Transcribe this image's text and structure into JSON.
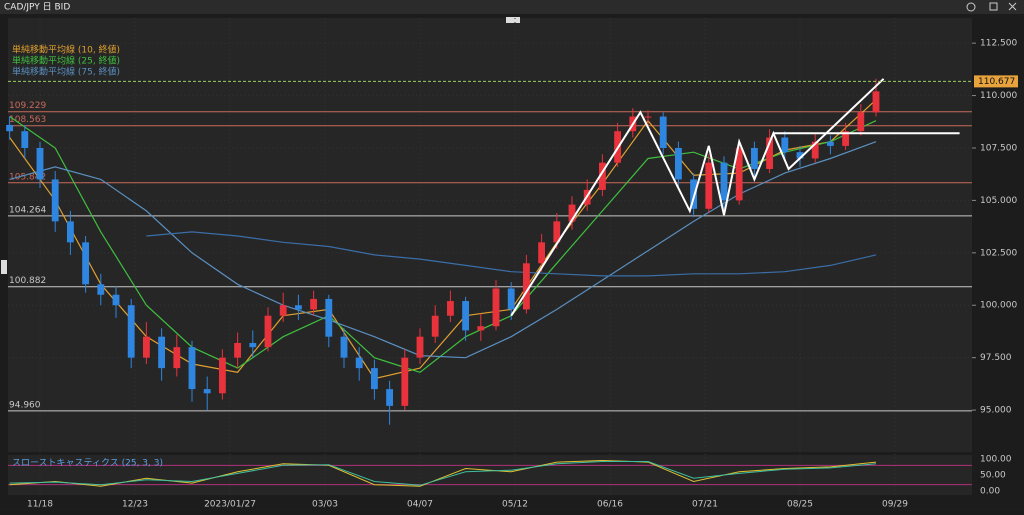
{
  "window_title": "CAD/JPY 日 BID",
  "chart_data": {
    "type": "candlestick",
    "x": [
      0,
      4,
      8,
      12,
      16,
      20,
      24,
      28,
      32,
      36,
      40,
      44,
      48,
      52,
      56,
      60,
      64,
      68,
      72,
      76,
      80,
      84,
      88,
      92,
      96,
      100,
      104,
      108,
      112,
      116,
      120,
      124,
      128,
      132,
      136,
      140,
      144,
      148,
      152,
      156,
      160,
      164,
      168,
      172,
      176,
      180,
      184,
      188,
      192,
      196,
      200,
      204,
      208,
      212,
      216,
      220,
      224,
      228
    ],
    "open": [
      108.6,
      108.3,
      107.5,
      106.0,
      104.0,
      103.0,
      101.0,
      100.5,
      100.0,
      97.5,
      98.5,
      97.0,
      98.0,
      96.0,
      95.8,
      97.5,
      98.2,
      98.0,
      99.5,
      100.0,
      99.8,
      100.3,
      98.5,
      97.5,
      97.0,
      96.0,
      95.2,
      97.5,
      98.5,
      99.5,
      100.2,
      98.8,
      99.0,
      100.8,
      99.8,
      102.0,
      103.0,
      104.0,
      104.8,
      105.5,
      106.8,
      108.3,
      109.0,
      109.0,
      107.5,
      106.0,
      104.6,
      106.8,
      105.0,
      107.5,
      106.5,
      108.0,
      107.3,
      107.0,
      107.8,
      107.6,
      108.3,
      109.2
    ],
    "high": [
      109.0,
      108.6,
      107.8,
      106.4,
      104.5,
      103.3,
      101.5,
      100.9,
      100.3,
      99.2,
      98.9,
      98.6,
      98.3,
      96.6,
      97.9,
      98.7,
      98.8,
      99.9,
      100.6,
      100.5,
      100.7,
      100.5,
      98.9,
      98.0,
      97.4,
      96.4,
      97.9,
      98.9,
      100.0,
      100.7,
      100.4,
      99.6,
      101.2,
      101.1,
      102.4,
      103.4,
      104.4,
      105.2,
      106.0,
      107.2,
      108.7,
      109.4,
      109.3,
      109.2,
      107.8,
      106.3,
      107.2,
      107.1,
      107.9,
      107.8,
      108.4,
      108.3,
      107.6,
      108.2,
      108.1,
      108.7,
      109.6,
      110.8
    ],
    "low": [
      107.9,
      107.0,
      105.6,
      103.5,
      102.4,
      100.6,
      100.0,
      99.4,
      97.0,
      97.2,
      96.4,
      96.6,
      95.4,
      95.0,
      95.5,
      97.0,
      97.5,
      97.8,
      99.2,
      99.3,
      99.5,
      98.0,
      97.0,
      96.4,
      95.5,
      94.3,
      95.0,
      97.2,
      98.2,
      99.2,
      98.3,
      98.3,
      98.8,
      99.3,
      99.6,
      101.6,
      102.7,
      103.6,
      104.5,
      105.2,
      106.6,
      108.0,
      108.4,
      107.2,
      105.6,
      104.2,
      104.4,
      104.6,
      104.8,
      106.0,
      106.3,
      107.0,
      106.6,
      106.8,
      107.2,
      107.4,
      108.1,
      109.0
    ],
    "close": [
      108.3,
      107.5,
      106.0,
      104.0,
      103.0,
      101.0,
      100.5,
      100.0,
      97.5,
      98.5,
      97.0,
      98.0,
      96.0,
      95.8,
      97.5,
      98.2,
      98.0,
      99.5,
      100.0,
      99.8,
      100.3,
      98.5,
      97.5,
      97.0,
      96.0,
      95.2,
      97.5,
      98.5,
      99.5,
      100.2,
      98.8,
      99.0,
      100.8,
      99.8,
      102.0,
      103.0,
      104.0,
      104.8,
      105.5,
      106.8,
      108.3,
      109.0,
      109.0,
      107.5,
      106.0,
      104.6,
      106.8,
      105.0,
      107.5,
      106.5,
      108.0,
      107.3,
      107.0,
      107.8,
      107.6,
      108.3,
      109.2,
      110.2
    ],
    "up_color": "#e8323c",
    "down_color": "#2f86e0",
    "series": [
      {
        "name": "単純移動平均線 (10, 終値)",
        "color": "#e0a030",
        "x": [
          0,
          12,
          24,
          36,
          48,
          60,
          72,
          84,
          96,
          108,
          120,
          132,
          144,
          156,
          168,
          180,
          192,
          204,
          216,
          228
        ],
        "values": [
          108.0,
          105.0,
          101.0,
          98.5,
          97.2,
          96.8,
          99.5,
          99.8,
          96.5,
          97.0,
          99.5,
          99.8,
          103.0,
          105.8,
          108.8,
          106.2,
          106.3,
          107.4,
          107.8,
          109.8
        ]
      },
      {
        "name": "単純移動平均線 (25, 終値)",
        "color": "#3fbf3f",
        "x": [
          0,
          12,
          24,
          36,
          48,
          60,
          72,
          84,
          96,
          108,
          120,
          132,
          144,
          156,
          168,
          180,
          192,
          204,
          216,
          228
        ],
        "values": [
          109.0,
          107.5,
          103.5,
          100.0,
          98.0,
          97.0,
          98.5,
          99.5,
          97.5,
          96.8,
          98.5,
          99.5,
          102.0,
          104.5,
          107.0,
          107.3,
          106.5,
          107.3,
          107.8,
          108.8
        ]
      },
      {
        "name": "単純移動平均線 (75, 終値)",
        "color": "#5a8fc0",
        "x": [
          0,
          12,
          24,
          36,
          48,
          60,
          72,
          84,
          96,
          108,
          120,
          132,
          144,
          156,
          168,
          180,
          192,
          204,
          216,
          228
        ],
        "values": [
          106.0,
          106.6,
          106.0,
          104.5,
          102.5,
          101.0,
          100.0,
          99.3,
          98.5,
          97.6,
          97.5,
          98.5,
          99.8,
          101.2,
          102.6,
          104.0,
          105.3,
          106.3,
          107.0,
          107.8
        ]
      },
      {
        "color": "#3b6ea8",
        "x": [
          36,
          48,
          60,
          72,
          84,
          96,
          108,
          120,
          132,
          144,
          156,
          168,
          180,
          192,
          204,
          216,
          228
        ],
        "values": [
          103.3,
          103.5,
          103.3,
          103.0,
          102.8,
          102.4,
          102.2,
          101.9,
          101.6,
          101.5,
          101.4,
          101.4,
          101.5,
          101.5,
          101.6,
          101.9,
          102.4
        ]
      }
    ],
    "levels": [
      {
        "value": 109.229,
        "label": "109.229",
        "color": "#c86a5a"
      },
      {
        "value": 108.563,
        "label": "108.563",
        "color": "#c86a5a"
      },
      {
        "value": 105.842,
        "label": "105.842",
        "color": "#c86a5a"
      },
      {
        "value": 104.264,
        "label": "104.264",
        "color": "#c8c8c8"
      },
      {
        "value": 100.882,
        "label": "100.882",
        "color": "#c8c8c8"
      },
      {
        "value": 94.96,
        "label": "94.960",
        "color": "#c8c8c8"
      }
    ],
    "current_price": {
      "value": 110.677,
      "label": "110.677"
    },
    "drawings": [
      [
        [
          132,
          99.5
        ],
        [
          166,
          109.2
        ],
        [
          179,
          104.5
        ],
        [
          184,
          107.6
        ],
        [
          188,
          104.3
        ],
        [
          192,
          107.8
        ],
        [
          196,
          106.0
        ],
        [
          201,
          108.2
        ],
        [
          205,
          106.5
        ],
        [
          230,
          110.8
        ]
      ],
      [
        [
          201,
          108.2
        ],
        [
          250,
          108.2
        ]
      ]
    ],
    "xlim": [
      0,
      253
    ],
    "xticks": [
      {
        "value": 8,
        "label": "11/18"
      },
      {
        "value": 33,
        "label": "12/23"
      },
      {
        "value": 58,
        "label": "2023/01/27"
      },
      {
        "value": 83,
        "label": "03/03"
      },
      {
        "value": 108,
        "label": "04/07"
      },
      {
        "value": 133,
        "label": "05/12"
      },
      {
        "value": 158,
        "label": "06/16"
      },
      {
        "value": 183,
        "label": "07/21"
      },
      {
        "value": 208,
        "label": "08/25"
      },
      {
        "value": 233,
        "label": "09/29"
      }
    ],
    "ylim": [
      93,
      113.7
    ],
    "yticks": [
      {
        "value": 95,
        "label": "95.000"
      },
      {
        "value": 97.5,
        "label": "97.500"
      },
      {
        "value": 100,
        "label": "100.000"
      },
      {
        "value": 102.5,
        "label": "102.500"
      },
      {
        "value": 105,
        "label": "105.000"
      },
      {
        "value": 107.5,
        "label": "107.500"
      },
      {
        "value": 110,
        "label": "110.000"
      },
      {
        "value": 112.5,
        "label": "112.500"
      }
    ],
    "oscillator": {
      "name": "スローストキャスティクス (25, 3, 3)",
      "x": [
        0,
        12,
        24,
        36,
        48,
        60,
        72,
        84,
        96,
        108,
        120,
        132,
        144,
        156,
        168,
        180,
        192,
        204,
        216,
        228
      ],
      "series": [
        {
          "color": "#e0c030",
          "values": [
            20,
            30,
            15,
            40,
            25,
            60,
            85,
            80,
            20,
            15,
            70,
            60,
            90,
            95,
            90,
            30,
            60,
            70,
            75,
            90
          ]
        },
        {
          "color": "#3fbf9f",
          "values": [
            25,
            28,
            20,
            35,
            30,
            55,
            80,
            82,
            30,
            18,
            60,
            65,
            85,
            92,
            92,
            40,
            55,
            68,
            72,
            85
          ]
        }
      ],
      "bands": [
        80,
        20
      ],
      "ylim": [
        -12,
        112
      ],
      "yticks": [
        {
          "value": 0,
          "label": "0.00"
        },
        {
          "value": 50,
          "label": "50.00"
        },
        {
          "value": 100,
          "label": "100.00"
        }
      ]
    }
  }
}
